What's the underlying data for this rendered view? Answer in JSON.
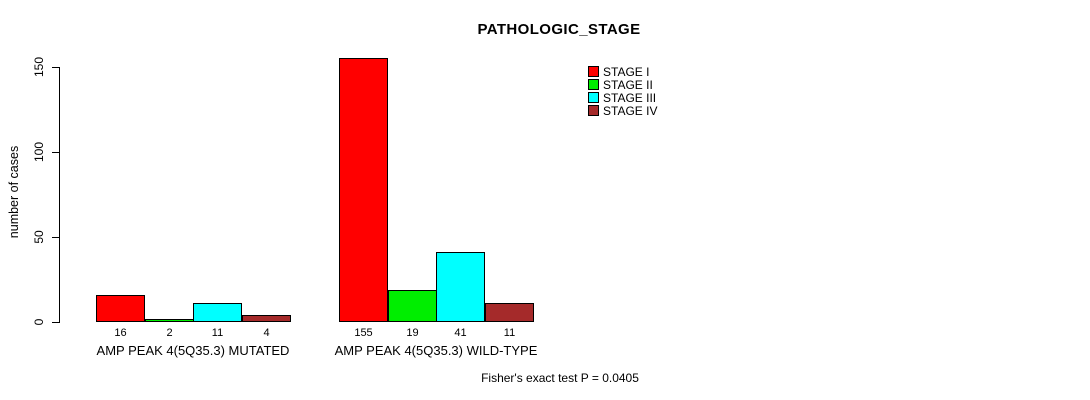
{
  "chart_data": {
    "type": "bar",
    "title": "PATHOLOGIC_STAGE",
    "ylabel": "number of cases",
    "yticks": [
      0,
      50,
      100,
      150
    ],
    "ylim": [
      0,
      155
    ],
    "grid": false,
    "legend_position": "top-right",
    "bar_value_labels": true,
    "categories": [
      "AMP PEAK 4(5Q35.3) MUTATED",
      "AMP PEAK 4(5Q35.3) WILD-TYPE"
    ],
    "series": [
      {
        "name": "STAGE I",
        "color": "#ff0000",
        "values": [
          16,
          155
        ]
      },
      {
        "name": "STAGE II",
        "color": "#00ee00",
        "values": [
          2,
          19
        ]
      },
      {
        "name": "STAGE III",
        "color": "#00ffff",
        "values": [
          11,
          41
        ]
      },
      {
        "name": "STAGE IV",
        "color": "#a52a2a",
        "values": [
          4,
          11
        ]
      }
    ],
    "annotation": "Fisher's exact test P = 0.0405"
  },
  "colors": {
    "axis": "#000000",
    "background": "#ffffff"
  }
}
